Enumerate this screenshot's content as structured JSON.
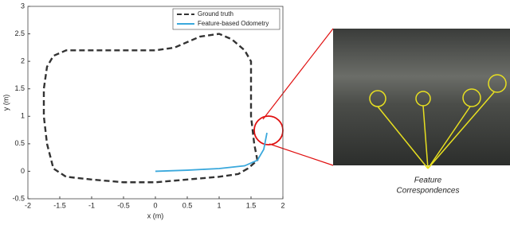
{
  "chart_data": {
    "type": "line",
    "xlabel": "x (m)",
    "ylabel": "y (m)",
    "xlim": [
      -2,
      2
    ],
    "ylim": [
      -0.5,
      3
    ],
    "xticks": [
      -2,
      -1.5,
      -1,
      -0.5,
      0,
      0.5,
      1,
      1.5,
      2
    ],
    "yticks": [
      -0.5,
      0,
      0.5,
      1,
      1.5,
      2,
      2.5,
      3
    ],
    "legend": "upper right",
    "series": [
      {
        "name": "Ground truth",
        "color": "#333333",
        "dashed": true,
        "x": [
          1.45,
          1.3,
          1.0,
          0.5,
          0.0,
          -0.5,
          -1.0,
          -1.4,
          -1.6,
          -1.7,
          -1.75,
          -1.75,
          -1.7,
          -1.6,
          -1.4,
          -1.0,
          -0.5,
          0.0,
          0.3,
          0.7,
          1.0,
          1.2,
          1.4,
          1.5,
          1.5,
          1.5,
          1.55,
          1.6,
          1.45
        ],
        "y": [
          0.05,
          -0.05,
          -0.1,
          -0.15,
          -0.2,
          -0.2,
          -0.15,
          -0.1,
          0.05,
          0.5,
          1.0,
          1.5,
          1.9,
          2.1,
          2.2,
          2.2,
          2.2,
          2.2,
          2.25,
          2.45,
          2.5,
          2.4,
          2.2,
          2.0,
          1.5,
          1.0,
          0.5,
          0.2,
          0.05
        ]
      },
      {
        "name": "Feature-based Odometry",
        "color": "#3aa8dc",
        "dashed": false,
        "x": [
          0.0,
          0.5,
          1.0,
          1.4,
          1.6,
          1.7,
          1.75
        ],
        "y": [
          0.0,
          0.02,
          0.05,
          0.1,
          0.2,
          0.4,
          0.7
        ]
      }
    ],
    "annotation": [
      "Feature",
      "Correspondences"
    ]
  }
}
